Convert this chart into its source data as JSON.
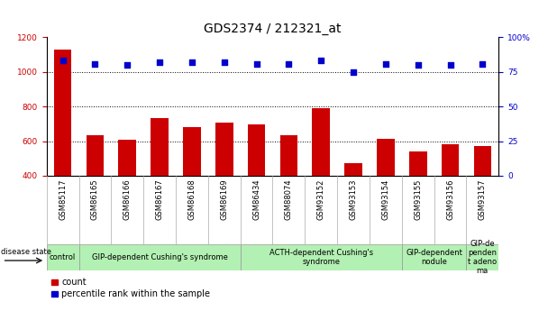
{
  "title": "GDS2374 / 212321_at",
  "samples": [
    "GSM85117",
    "GSM86165",
    "GSM86166",
    "GSM86167",
    "GSM86168",
    "GSM86169",
    "GSM86434",
    "GSM88074",
    "GSM93152",
    "GSM93153",
    "GSM93154",
    "GSM93155",
    "GSM93156",
    "GSM93157"
  ],
  "counts": [
    1130,
    635,
    610,
    735,
    680,
    705,
    695,
    635,
    790,
    470,
    615,
    540,
    580,
    570
  ],
  "percentiles": [
    83,
    81,
    80,
    82,
    82,
    82,
    81,
    81,
    83,
    75,
    81,
    80,
    80,
    81
  ],
  "disease_groups": [
    {
      "label": "control",
      "start": 0,
      "end": 1
    },
    {
      "label": "GIP-dependent Cushing's syndrome",
      "start": 1,
      "end": 6
    },
    {
      "label": "ACTH-dependent Cushing's\nsyndrome",
      "start": 6,
      "end": 11
    },
    {
      "label": "GIP-dependent\nnodule",
      "start": 11,
      "end": 13
    },
    {
      "label": "GIP-de\npenden\nt adeno\nma",
      "start": 13,
      "end": 14
    }
  ],
  "group_color": "#b3f0b3",
  "bar_color": "#cc0000",
  "dot_color": "#0000cc",
  "left_ylim": [
    400,
    1200
  ],
  "left_yticks": [
    400,
    600,
    800,
    1000,
    1200
  ],
  "right_ylim": [
    0,
    100
  ],
  "right_yticks": [
    0,
    25,
    50,
    75,
    100
  ],
  "right_yticklabels": [
    "0",
    "25",
    "50",
    "75",
    "100%"
  ],
  "bar_color_label": "#cc0000",
  "dot_color_label": "#0000cc",
  "title_fontsize": 10,
  "tick_fontsize": 6.5,
  "sample_fontsize": 6,
  "group_fontsize": 6,
  "legend_fontsize": 7
}
